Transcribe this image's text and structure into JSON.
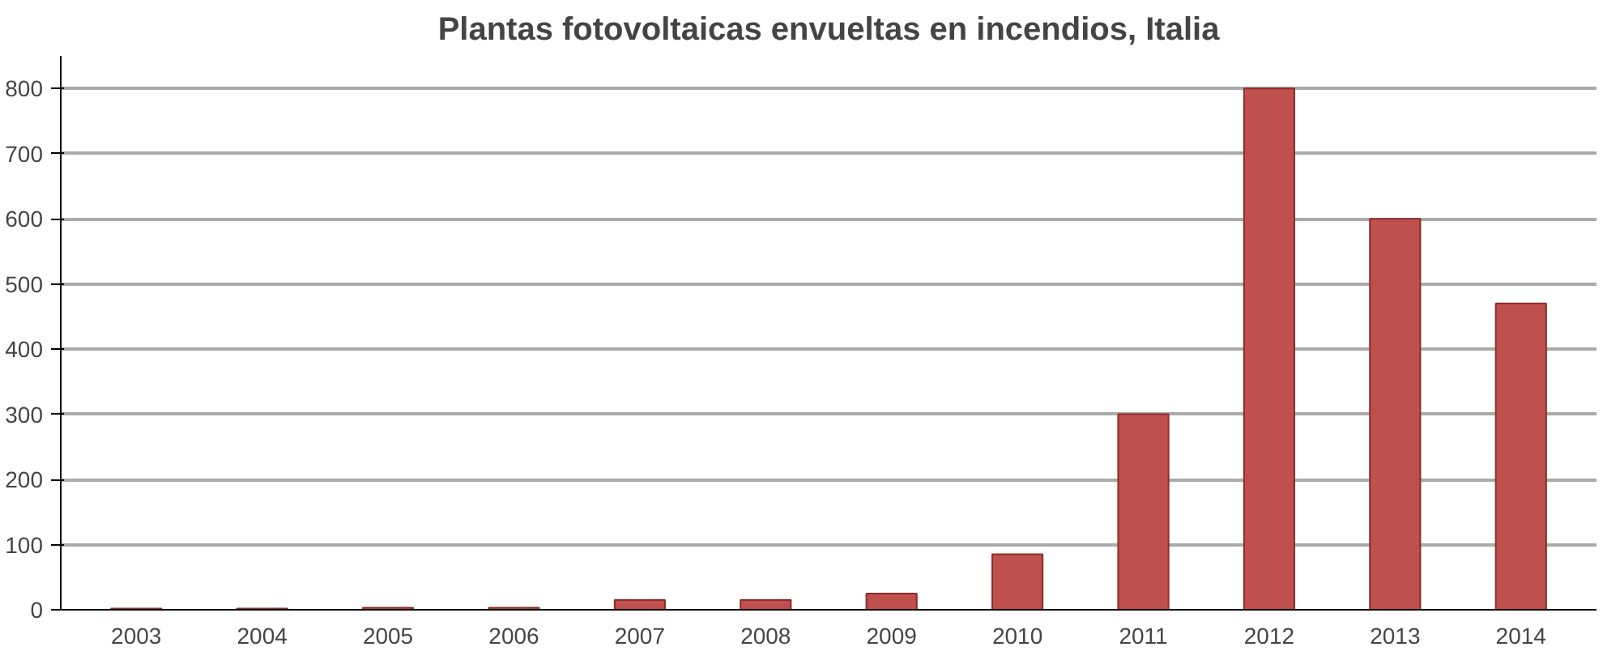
{
  "chart_data": {
    "type": "bar",
    "title": "Plantas fotovoltaicas envueltas en incendios, Italia",
    "categories": [
      "2003",
      "2004",
      "2005",
      "2006",
      "2007",
      "2008",
      "2009",
      "2010",
      "2011",
      "2012",
      "2013",
      "2014"
    ],
    "values": [
      2,
      2,
      3,
      3,
      15,
      15,
      25,
      85,
      300,
      800,
      600,
      470
    ],
    "color": "#c0504d",
    "ylim": [
      0,
      850
    ],
    "yticks": [
      0,
      100,
      200,
      300,
      400,
      500,
      600,
      700,
      800
    ],
    "grid": "y"
  }
}
